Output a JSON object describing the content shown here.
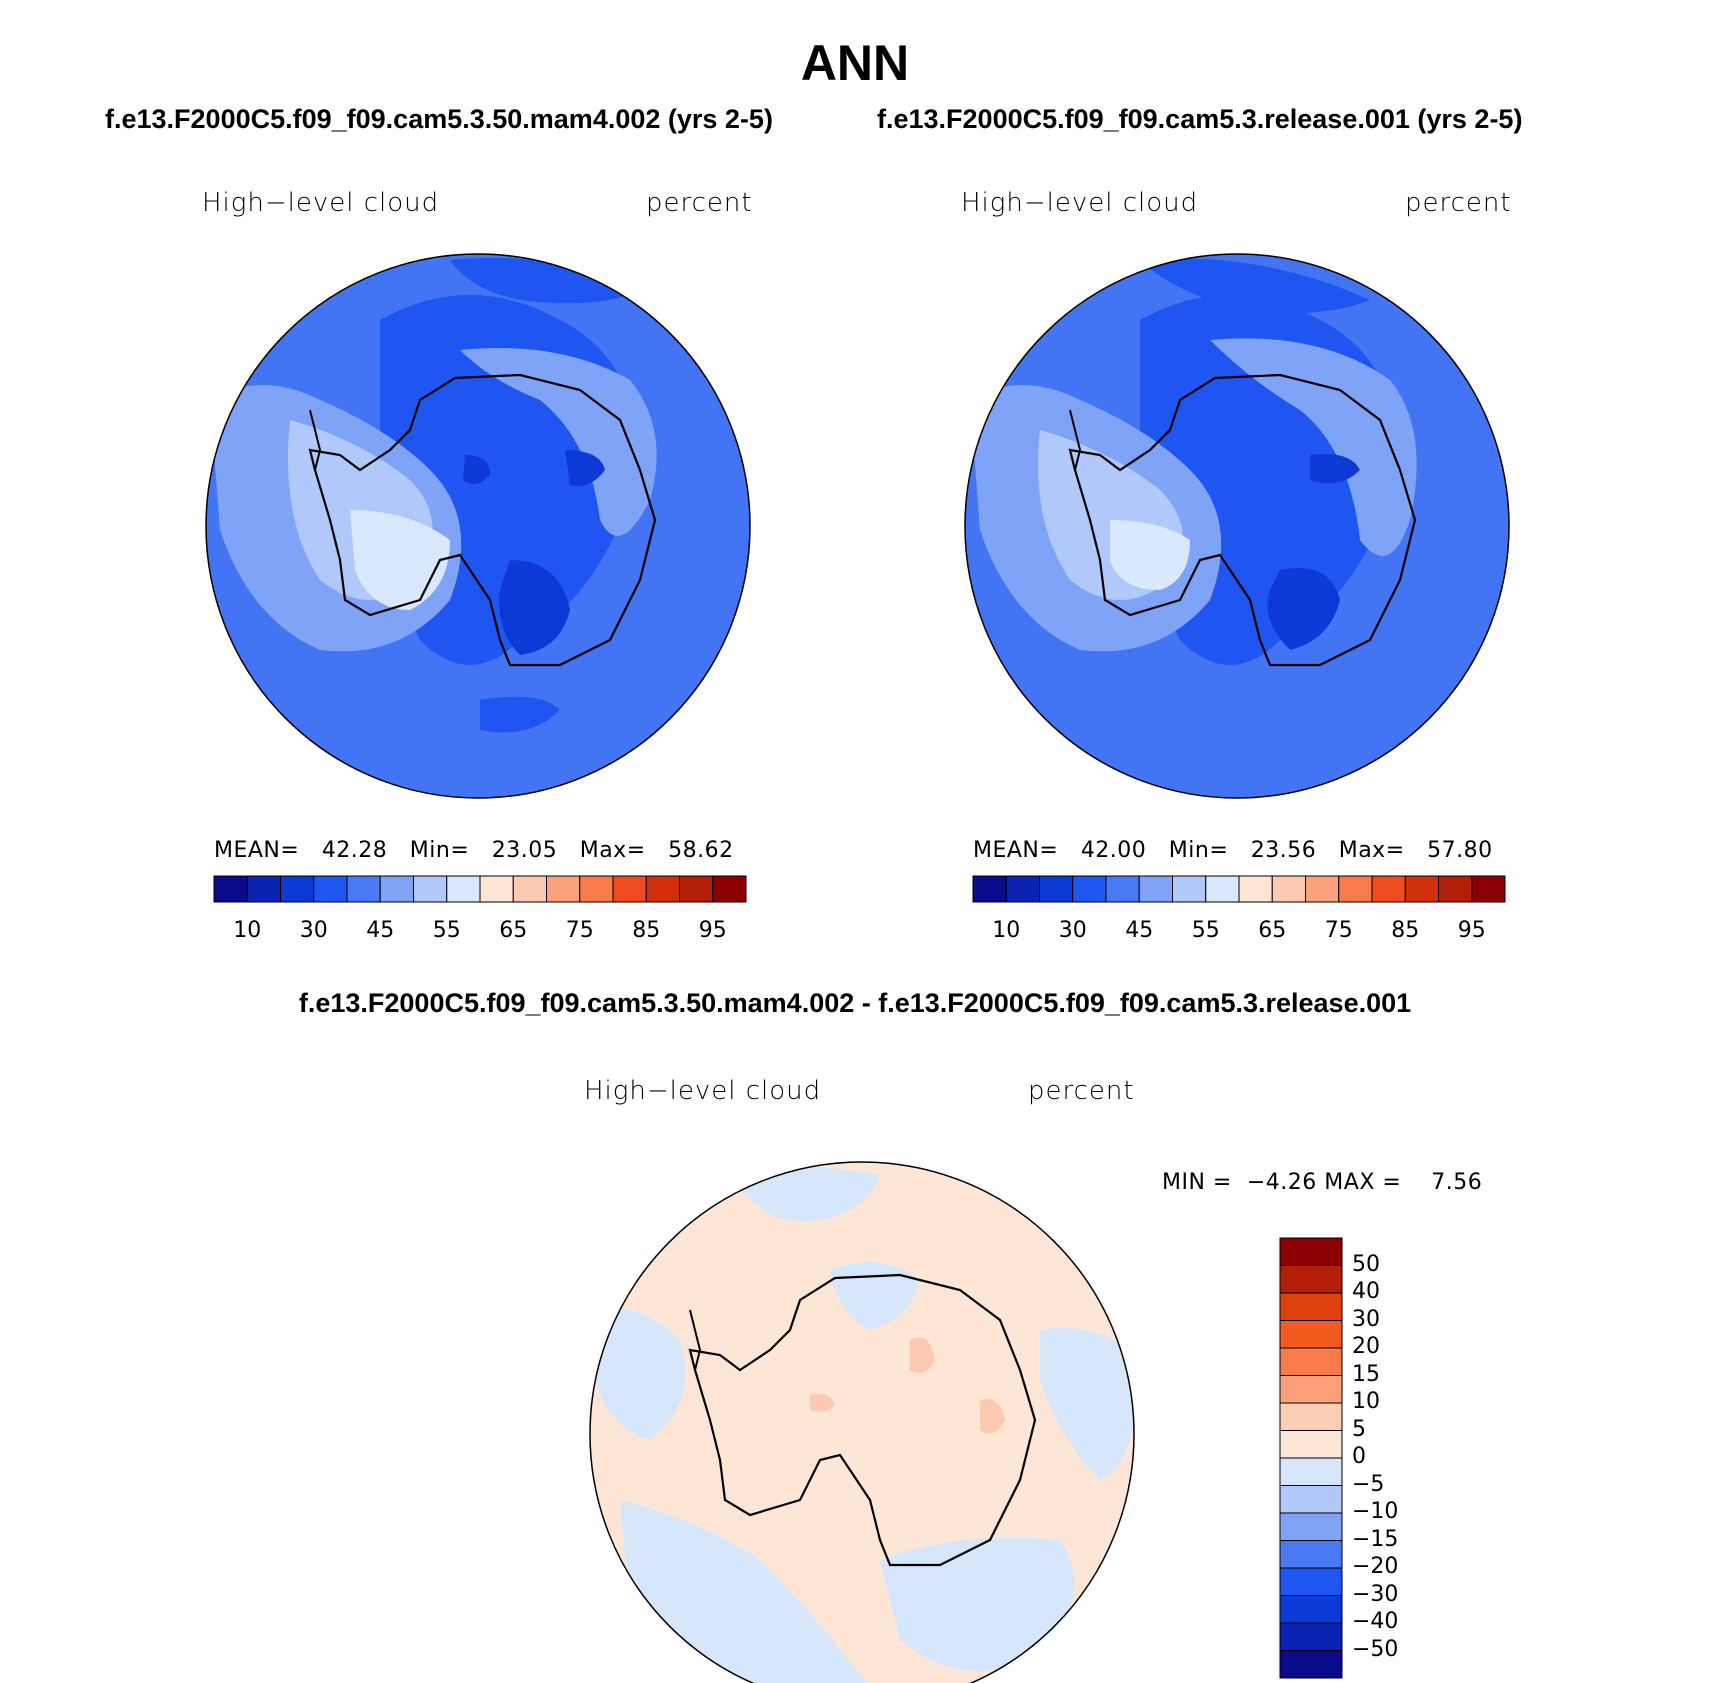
{
  "title": "ANN",
  "case1": "f.e13.F2000C5.f09_f09.cam5.3.50.mam4.002 (yrs 2-5)",
  "case2": "f.e13.F2000C5.f09_f09.cam5.3.release.001 (yrs 2-5)",
  "diff_title": "f.e13.F2000C5.f09_f09.cam5.3.50.mam4.002 - f.e13.F2000C5.f09_f09.cam5.3.release.001",
  "panels": [
    {
      "variable": "High−level cloud",
      "units": "percent",
      "stats": {
        "mean_label": "MEAN=",
        "mean": "42.28",
        "min_label": "Min=",
        "min": "23.05",
        "max_label": "Max=",
        "max": "58.62"
      }
    },
    {
      "variable": "High−level cloud",
      "units": "percent",
      "stats": {
        "mean_label": "MEAN=",
        "mean": "42.00",
        "min_label": "Min=",
        "min": "23.56",
        "max_label": "Max=",
        "max": "57.80"
      }
    }
  ],
  "diff_panel": {
    "variable": "High−level cloud",
    "units": "percent",
    "min_label": "MIN =",
    "min": "−4.26",
    "max_label": "MAX =",
    "max": "7.56"
  },
  "colorbar_top": {
    "colors": [
      "#0a0a8c",
      "#0b23b5",
      "#0d3ad6",
      "#1f55f0",
      "#4a79f5",
      "#7fa3f7",
      "#b1c8fa",
      "#d9e8fd",
      "#fde6d6",
      "#fcc9b1",
      "#f9a27c",
      "#f97a4a",
      "#f04a20",
      "#d12f0c",
      "#b21e08",
      "#8b0000"
    ],
    "tick_labels": [
      "10",
      "30",
      "45",
      "55",
      "65",
      "75",
      "85",
      "95"
    ]
  },
  "colorbar_diff": {
    "colors": [
      "#8b0000",
      "#b21e08",
      "#e0400d",
      "#f25a20",
      "#f97a4a",
      "#fba07a",
      "#fccfb5",
      "#fde6d6",
      "#d6e7fb",
      "#b1c8fa",
      "#7fa3f7",
      "#4a79f5",
      "#1f55f0",
      "#0d3ad6",
      "#0b23b5",
      "#0a0a8c"
    ],
    "tick_labels": [
      "50",
      "40",
      "30",
      "20",
      "15",
      "10",
      "5",
      "0",
      "−5",
      "−10",
      "−15",
      "−20",
      "−30",
      "−40",
      "−50"
    ]
  },
  "map_colors": {
    "ocean": "#4374f4",
    "band1": "#7fa3f7",
    "band2": "#b1c8fa",
    "band3": "#d9e8fd",
    "dark1": "#1f55f0",
    "dark2": "#0d3ad6",
    "diff_pos": "#fde6d6",
    "diff_neg": "#d6e7fb",
    "diff_pos2": "#fcc9b1"
  }
}
